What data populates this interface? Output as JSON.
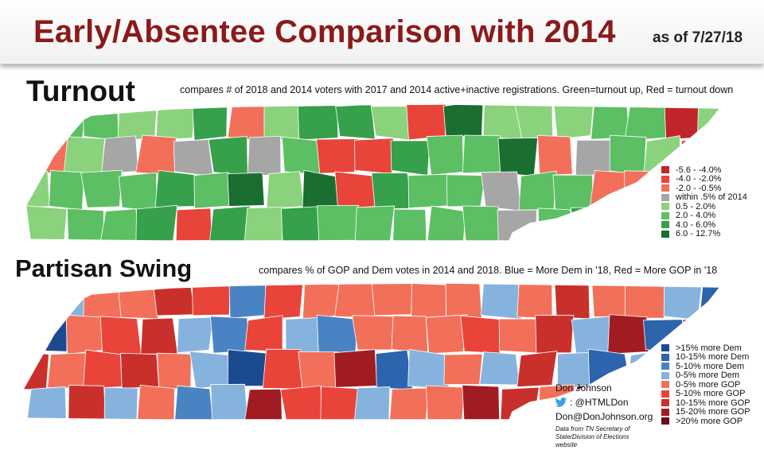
{
  "header": {
    "title": "Early/Absentee Comparison with 2014",
    "as_of": "as of 7/27/18"
  },
  "turnout": {
    "title": "Turnout",
    "description": "compares # of 2018 and 2014 voters with 2017 and 2014 active+inactive registrations.  Green=turnout up, Red = turnout down",
    "legend": [
      {
        "label": "-5.6 - -4.0%",
        "color": "#c0252b"
      },
      {
        "label": "-4.0 - -2.0%",
        "color": "#e8443a"
      },
      {
        "label": "-2.0 - -0.5%",
        "color": "#f2705a"
      },
      {
        "label": "within .5% of 2014",
        "color": "#a6a6a6"
      },
      {
        "label": "0.5 - 2.0%",
        "color": "#8bd27d"
      },
      {
        "label": "2.0 - 4.0%",
        "color": "#5cbf63"
      },
      {
        "label": "4.0 - 6.0%",
        "color": "#36a04a"
      },
      {
        "label": "6.0 - 12.7%",
        "color": "#1a6e2f"
      }
    ]
  },
  "swing": {
    "title": "Partisan Swing",
    "description": "compares % of GOP and Dem votes in 2014 and 2018.  Blue = More Dem in '18, Red = More GOP in '18",
    "legend": [
      {
        "label": ">15% more Dem",
        "color": "#1c4a8f"
      },
      {
        "label": "10-15% more Dem",
        "color": "#2c64ad"
      },
      {
        "label": "5-10% more Dem",
        "color": "#4a83c4"
      },
      {
        "label": "0-5% more Dem",
        "color": "#86b3de"
      },
      {
        "label": "0-5% more GOP",
        "color": "#f2705a"
      },
      {
        "label": "5-10% more GOP",
        "color": "#e8443a"
      },
      {
        "label": "10-15% more GOP",
        "color": "#c9302c"
      },
      {
        "label": "15-20% more GOP",
        "color": "#a11c22"
      },
      {
        "label": ">20% more GOP",
        "color": "#6e0d15"
      }
    ]
  },
  "credits": {
    "name": "Don Johnson",
    "twitter": ": @HTMLDon",
    "email": "Don@DonJohnson.org",
    "source": "Data from TN Secretary of State/Division of Elections website"
  }
}
